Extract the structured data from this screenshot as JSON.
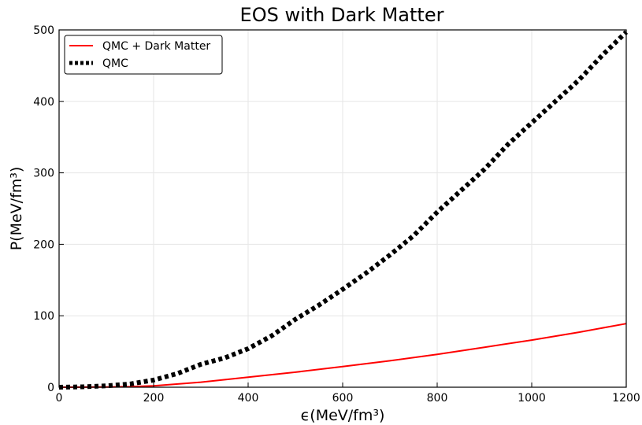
{
  "chart_data": {
    "type": "line",
    "title": "EOS with Dark Matter",
    "xlabel": "ϵ(MeV/fm³)",
    "ylabel": "P(MeV/fm³)",
    "xlim": [
      0,
      1200
    ],
    "ylim": [
      0,
      500
    ],
    "x_ticks": [
      0,
      200,
      400,
      600,
      800,
      1000,
      1200
    ],
    "y_ticks": [
      0,
      100,
      200,
      300,
      400,
      500
    ],
    "grid": true,
    "legend_position": "top-left",
    "series": [
      {
        "name": "QMC + Dark Matter",
        "color": "#ff0000",
        "style": "solid",
        "x": [
          0,
          100,
          150,
          200,
          300,
          400,
          500,
          600,
          700,
          800,
          900,
          1000,
          1100,
          1200
        ],
        "y": [
          0,
          0.3,
          0.8,
          2,
          7,
          14,
          21,
          29,
          37,
          46,
          56,
          66,
          77,
          89
        ]
      },
      {
        "name": "QMC",
        "color": "#000000",
        "style": "dotted",
        "x": [
          0,
          50,
          100,
          150,
          200,
          250,
          300,
          350,
          400,
          450,
          500,
          550,
          600,
          650,
          700,
          750,
          800,
          850,
          900,
          950,
          1000,
          1050,
          1100,
          1150,
          1200
        ],
        "y": [
          0,
          0.5,
          2,
          4.5,
          10,
          19,
          32,
          41,
          54,
          72,
          95,
          115,
          137,
          160,
          185,
          212,
          245,
          275,
          305,
          340,
          370,
          400,
          430,
          465,
          497
        ]
      }
    ]
  }
}
